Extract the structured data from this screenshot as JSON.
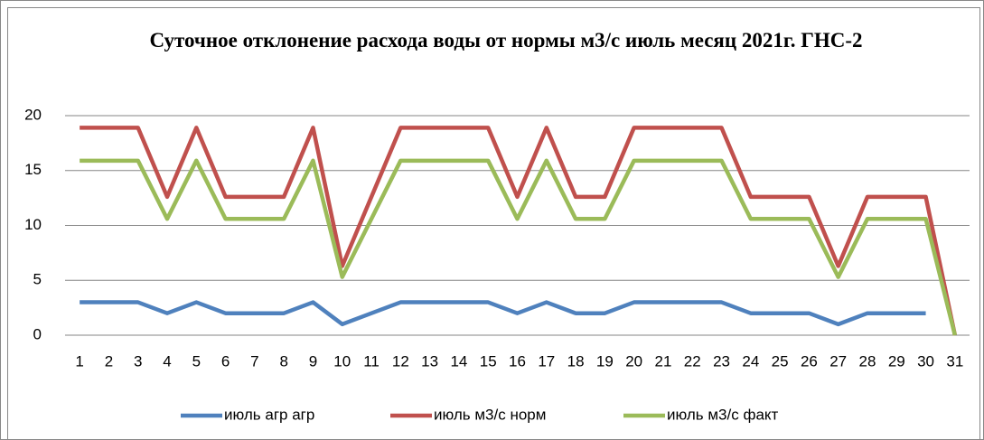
{
  "chart_data": {
    "type": "line",
    "title": "Суточное отклонение расхода воды от нормы м3/с июль месяц 2021г. ГНС-2",
    "categories": [
      "1",
      "2",
      "3",
      "4",
      "5",
      "6",
      "7",
      "8",
      "9",
      "10",
      "11",
      "12",
      "13",
      "14",
      "15",
      "16",
      "17",
      "18",
      "19",
      "20",
      "21",
      "22",
      "23",
      "24",
      "25",
      "26",
      "27",
      "28",
      "29",
      "30",
      "31"
    ],
    "series": [
      {
        "name": "июль агр агр",
        "color": "#4f81bd",
        "values": [
          3,
          3,
          3,
          2,
          3,
          2,
          2,
          2,
          3,
          1,
          2,
          3,
          3,
          3,
          3,
          2,
          3,
          2,
          2,
          3,
          3,
          3,
          3,
          2,
          2,
          2,
          1,
          2,
          2,
          2,
          null
        ]
      },
      {
        "name": "июль м3/с норм",
        "color": "#c0504d",
        "values": [
          18.9,
          18.9,
          18.9,
          12.6,
          18.9,
          12.6,
          12.6,
          12.6,
          18.9,
          6.3,
          12.6,
          18.9,
          18.9,
          18.9,
          18.9,
          12.6,
          18.9,
          12.6,
          12.6,
          18.9,
          18.9,
          18.9,
          18.9,
          12.6,
          12.6,
          12.6,
          6.3,
          12.6,
          12.6,
          12.6,
          0
        ]
      },
      {
        "name": "июль м3/с факт",
        "color": "#9bbb59",
        "values": [
          15.9,
          15.9,
          15.9,
          10.6,
          15.9,
          10.6,
          10.6,
          10.6,
          15.9,
          5.3,
          10.6,
          15.9,
          15.9,
          15.9,
          15.9,
          10.6,
          15.9,
          10.6,
          10.6,
          15.9,
          15.9,
          15.9,
          15.9,
          10.6,
          10.6,
          10.6,
          5.3,
          10.6,
          10.6,
          10.6,
          0
        ]
      }
    ],
    "ylim": [
      0,
      20
    ],
    "yticks": [
      0,
      5,
      10,
      15,
      20
    ],
    "grid": true,
    "legend": "bottom"
  }
}
